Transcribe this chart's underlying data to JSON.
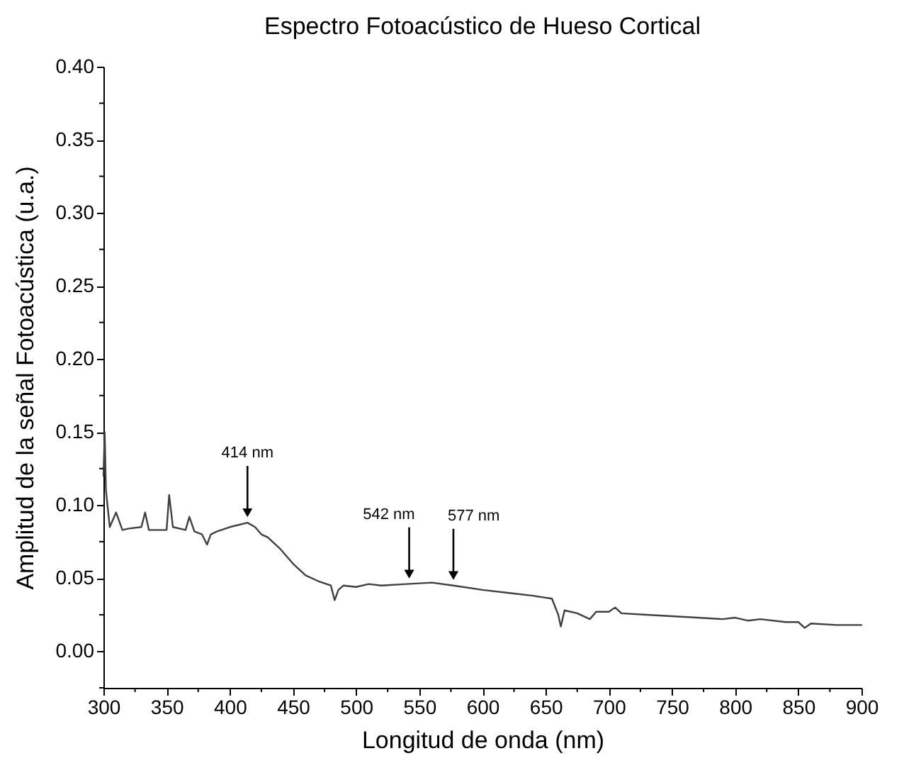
{
  "chart_data": {
    "type": "line",
    "title": "Espectro Fotoacústico de Hueso Cortical",
    "xlabel": "Longitud de onda (nm)",
    "ylabel": "Amplitud de la señal Fotoacústica (u.a.)",
    "xlim": [
      300,
      900
    ],
    "ylim": [
      -0.025,
      0.4
    ],
    "xticks": [
      300,
      {
        "value": 325,
        "label": null
      },
      350,
      {
        "value": 375,
        "label": null
      },
      400,
      {
        "value": 425,
        "label": null
      },
      450,
      {
        "value": 475,
        "label": null
      },
      500,
      {
        "value": 525,
        "label": null
      },
      550,
      {
        "value": 575,
        "label": null
      },
      600,
      {
        "value": 625,
        "label": null
      },
      650,
      {
        "value": 675,
        "label": null
      },
      700,
      {
        "value": 725,
        "label": null
      },
      750,
      {
        "value": 775,
        "label": null
      },
      800,
      {
        "value": 825,
        "label": null
      },
      850,
      {
        "value": 875,
        "label": null
      },
      900
    ],
    "yticks": [
      {
        "value": -0.025,
        "label": null
      },
      {
        "value": 0,
        "label": "0.00"
      },
      {
        "value": 0.025,
        "label": null
      },
      {
        "value": 0.05,
        "label": "0.05"
      },
      {
        "value": 0.075,
        "label": null
      },
      {
        "value": 0.1,
        "label": "0.10"
      },
      {
        "value": 0.125,
        "label": null
      },
      {
        "value": 0.15,
        "label": "0.15"
      },
      {
        "value": 0.175,
        "label": null
      },
      {
        "value": 0.2,
        "label": "0.20"
      },
      {
        "value": 0.225,
        "label": null
      },
      {
        "value": 0.25,
        "label": "0.25"
      },
      {
        "value": 0.275,
        "label": null
      },
      {
        "value": 0.3,
        "label": "0.30"
      },
      {
        "value": 0.325,
        "label": null
      },
      {
        "value": 0.35,
        "label": "0.35"
      },
      {
        "value": 0.375,
        "label": null
      },
      {
        "value": 0.4,
        "label": "0.40"
      }
    ],
    "grid": false,
    "marker": "none",
    "line_style": "solid",
    "x": [
      300,
      301,
      302,
      305,
      310,
      315,
      320,
      330,
      333,
      336,
      340,
      350,
      352,
      355,
      365,
      368,
      372,
      378,
      382,
      385,
      390,
      400,
      414,
      420,
      425,
      430,
      440,
      450,
      460,
      470,
      480,
      483,
      486,
      490,
      500,
      510,
      520,
      540,
      560,
      577,
      600,
      620,
      640,
      655,
      660,
      662,
      665,
      675,
      685,
      690,
      700,
      705,
      710,
      730,
      750,
      770,
      790,
      800,
      810,
      820,
      840,
      850,
      855,
      860,
      880,
      900
    ],
    "series": [
      {
        "color": "#404040",
        "values": [
          0.12,
          0.15,
          0.11,
          0.085,
          0.095,
          0.083,
          0.084,
          0.085,
          0.095,
          0.083,
          0.083,
          0.083,
          0.107,
          0.085,
          0.083,
          0.092,
          0.082,
          0.08,
          0.073,
          0.08,
          0.082,
          0.085,
          0.088,
          0.085,
          0.08,
          0.078,
          0.07,
          0.06,
          0.052,
          0.048,
          0.045,
          0.035,
          0.042,
          0.045,
          0.044,
          0.046,
          0.045,
          0.046,
          0.047,
          0.045,
          0.042,
          0.04,
          0.038,
          0.036,
          0.025,
          0.017,
          0.028,
          0.026,
          0.022,
          0.027,
          0.027,
          0.03,
          0.026,
          0.025,
          0.024,
          0.023,
          0.022,
          0.023,
          0.021,
          0.022,
          0.02,
          0.02,
          0.016,
          0.019,
          0.018,
          0.018
        ]
      }
    ],
    "annotations": [
      {
        "text": "414 nm",
        "x": 414,
        "y": 0.088
      },
      {
        "text": "542 nm",
        "x": 542,
        "y": 0.046
      },
      {
        "text": "577 nm",
        "x": 577,
        "y": 0.045
      }
    ]
  }
}
